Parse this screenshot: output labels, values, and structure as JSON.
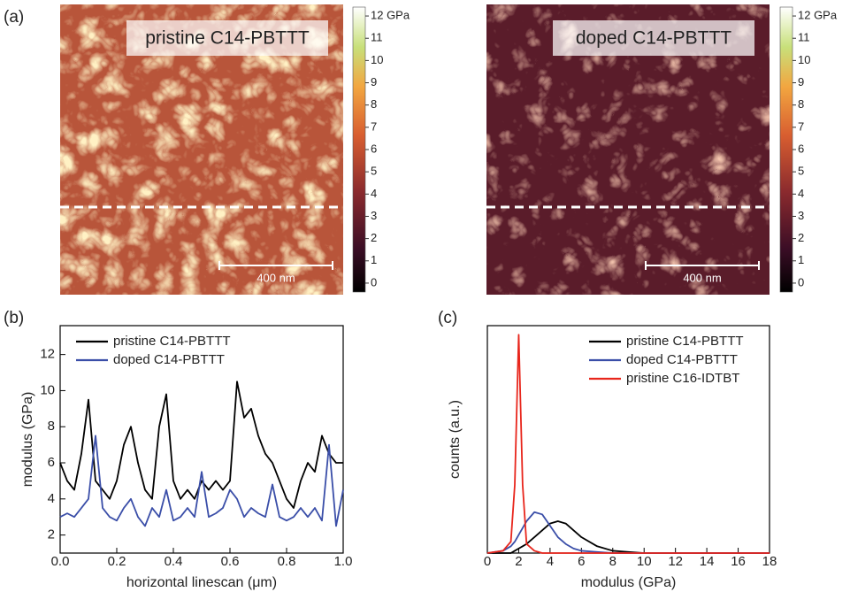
{
  "chart_data": [
    {
      "type": "image",
      "panel_label": "(a)",
      "label": "pristine C14-PBTTT",
      "scale_bar": "400 nm",
      "ylim": [
        -0.4,
        12.4
      ],
      "yticks": [
        0,
        1,
        2,
        3,
        4,
        5,
        6,
        7,
        8,
        9,
        10,
        11,
        {
          "value": 12,
          "label": "12 GPa"
        }
      ]
    },
    {
      "type": "image",
      "label": "doped C14-PBTTT",
      "scale_bar": "400 nm",
      "ylim": [
        -0.4,
        12.4
      ],
      "yticks": [
        0,
        1,
        2,
        3,
        4,
        5,
        6,
        7,
        8,
        9,
        10,
        11,
        {
          "value": 12,
          "label": "12 GPa"
        }
      ]
    },
    {
      "type": "line",
      "panel_label": "(b)",
      "xlabel": "horizontal linescan (μm)",
      "ylabel": "modulus (GPa)",
      "x": [
        0,
        0.025,
        0.05,
        0.075,
        0.1,
        0.125,
        0.15,
        0.175,
        0.2,
        0.225,
        0.25,
        0.275,
        0.3,
        0.325,
        0.35,
        0.375,
        0.4,
        0.425,
        0.45,
        0.475,
        0.5,
        0.525,
        0.55,
        0.575,
        0.6,
        0.625,
        0.65,
        0.675,
        0.7,
        0.725,
        0.75,
        0.775,
        0.8,
        0.825,
        0.85,
        0.875,
        0.9,
        0.925,
        0.95,
        0.975,
        1.0
      ],
      "xlim": [
        0,
        1
      ],
      "xticks": [
        {
          "value": 0,
          "label": "0.0"
        },
        {
          "value": 0.2,
          "label": "0.2"
        },
        {
          "value": 0.4,
          "label": "0.4"
        },
        {
          "value": 0.6,
          "label": "0.6"
        },
        {
          "value": 0.8,
          "label": "0.8"
        },
        {
          "value": 1,
          "label": "1.0"
        }
      ],
      "ylim": [
        1,
        13.6
      ],
      "yticks": [
        2,
        4,
        6,
        8,
        10,
        12
      ],
      "legend": "upper left",
      "series": [
        {
          "name": "pristine C14-PBTTT",
          "color": "#000000",
          "values": [
            6,
            5,
            4.5,
            6.5,
            9.5,
            5,
            4.5,
            4,
            5,
            7,
            8,
            6,
            4.5,
            4,
            8,
            9.8,
            5,
            4,
            4.5,
            4,
            5,
            4.5,
            5,
            4.5,
            5,
            10.5,
            8.5,
            9,
            7.5,
            6.5,
            6,
            5,
            4,
            3.5,
            5,
            6,
            5.5,
            7.5,
            6.5,
            6,
            6
          ]
        },
        {
          "name": "doped C14-PBTTT",
          "color": "#3a4ea8",
          "values": [
            3,
            3.2,
            3,
            3.5,
            4,
            7.5,
            3.5,
            3,
            2.8,
            3.5,
            4,
            3,
            2.5,
            3.5,
            3,
            4.5,
            2.8,
            3,
            3.5,
            3,
            5.5,
            3,
            3.2,
            3.5,
            4.5,
            4,
            3,
            3.5,
            3.2,
            3,
            4.8,
            3,
            2.8,
            3,
            3.5,
            3,
            3.5,
            2.8,
            7,
            2.5,
            4.5
          ]
        }
      ]
    },
    {
      "type": "line",
      "panel_label": "(c)",
      "xlabel": "modulus (GPa)",
      "ylabel": "counts (a.u.)",
      "x": [
        0,
        1,
        1.5,
        1.75,
        2,
        2.25,
        2.5,
        3,
        3.5,
        4,
        4.5,
        5,
        5.5,
        6,
        7,
        8,
        9,
        10,
        12,
        14,
        16,
        18
      ],
      "xlim": [
        0,
        18
      ],
      "xticks": [
        0,
        2,
        4,
        6,
        8,
        10,
        12,
        14,
        16,
        18
      ],
      "ylim": [
        0,
        1
      ],
      "legend": "upper right",
      "series": [
        {
          "name": "pristine C14-PBTTT",
          "color": "#000000",
          "values": [
            0,
            0,
            0,
            0.01,
            0.02,
            0.03,
            0.04,
            0.07,
            0.1,
            0.13,
            0.14,
            0.13,
            0.1,
            0.07,
            0.03,
            0.01,
            0.005,
            0,
            0,
            0,
            0,
            0
          ]
        },
        {
          "name": "doped C14-PBTTT",
          "color": "#3a4ea8",
          "values": [
            0,
            0.01,
            0.03,
            0.05,
            0.08,
            0.11,
            0.14,
            0.18,
            0.17,
            0.12,
            0.07,
            0.04,
            0.02,
            0.01,
            0.005,
            0,
            0,
            0,
            0,
            0,
            0,
            0
          ]
        },
        {
          "name": "pristine C16-IDTBT",
          "color": "#e8261c",
          "values": [
            0,
            0.01,
            0.05,
            0.3,
            0.96,
            0.3,
            0.04,
            0.01,
            0,
            0,
            0,
            0,
            0,
            0,
            0,
            0,
            0,
            0,
            0,
            0,
            0,
            0
          ]
        }
      ]
    }
  ]
}
